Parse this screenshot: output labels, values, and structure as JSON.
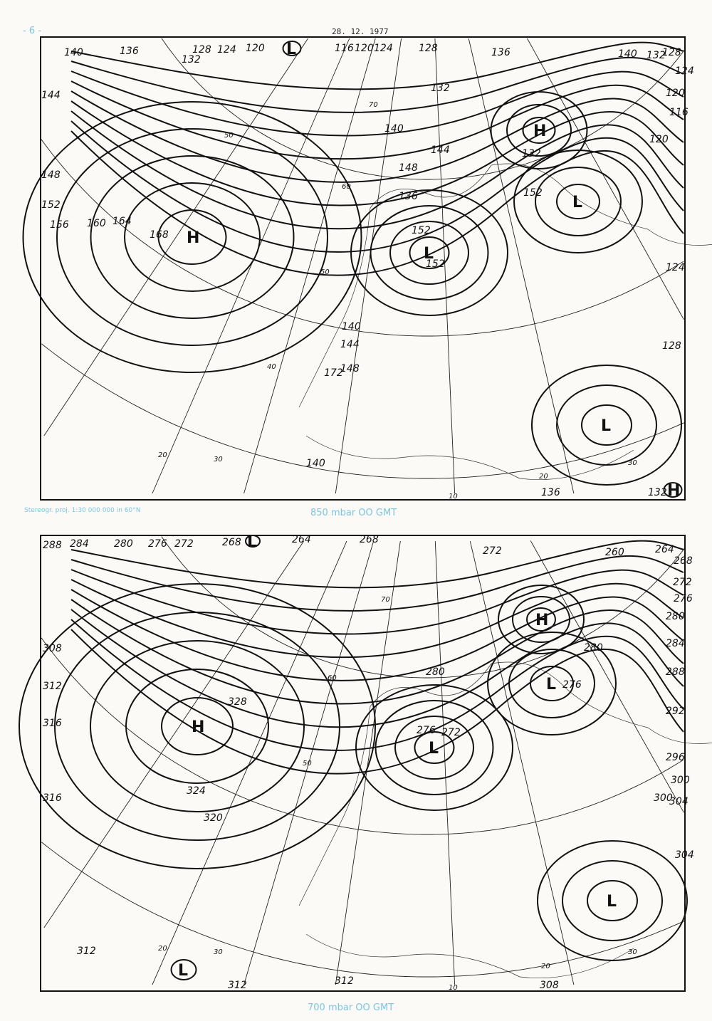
{
  "header": {
    "page_number": "- 6 -",
    "date": "28. 12. 1977"
  },
  "projection_note": "Stereogr. proj. 1:30 000 000 in 60°N",
  "caption_color": "#7cc6e0",
  "maps": [
    {
      "caption": "850 mbar  OO GMT",
      "centers": [
        "H",
        "L",
        "H",
        "L",
        "L",
        "L",
        "H"
      ],
      "contour_labels": [
        "140",
        "136",
        "132",
        "128",
        "124",
        "120",
        "116",
        "120",
        "124",
        "128",
        "132",
        "136",
        "140",
        "132",
        "128",
        "124",
        "120",
        "116",
        "120",
        "124",
        "128",
        "132",
        "136",
        "140",
        "144",
        "148",
        "152",
        "156",
        "160",
        "164",
        "168",
        "172",
        "148",
        "144",
        "140",
        "136",
        "152",
        "152",
        "152",
        "132",
        "140",
        "144",
        "148"
      ],
      "grid_labels": [
        "10",
        "20",
        "20",
        "30",
        "30",
        "40",
        "50",
        "50",
        "70",
        "60"
      ]
    },
    {
      "caption": "700 mbar  OO GMT",
      "centers": [
        "H",
        "L",
        "H",
        "L",
        "L",
        "L",
        "L"
      ],
      "contour_labels": [
        "288",
        "284",
        "280",
        "276",
        "272",
        "268",
        "264",
        "268",
        "272",
        "260",
        "264",
        "268",
        "272",
        "276",
        "280",
        "284",
        "288",
        "292",
        "296",
        "300",
        "304",
        "300",
        "304",
        "308",
        "312",
        "316",
        "316",
        "328",
        "324",
        "320",
        "280",
        "276",
        "272",
        "312",
        "312",
        "312",
        "308",
        "280",
        "276"
      ],
      "grid_labels": [
        "10",
        "20",
        "20",
        "30",
        "30",
        "50",
        "60",
        "70"
      ]
    }
  ]
}
